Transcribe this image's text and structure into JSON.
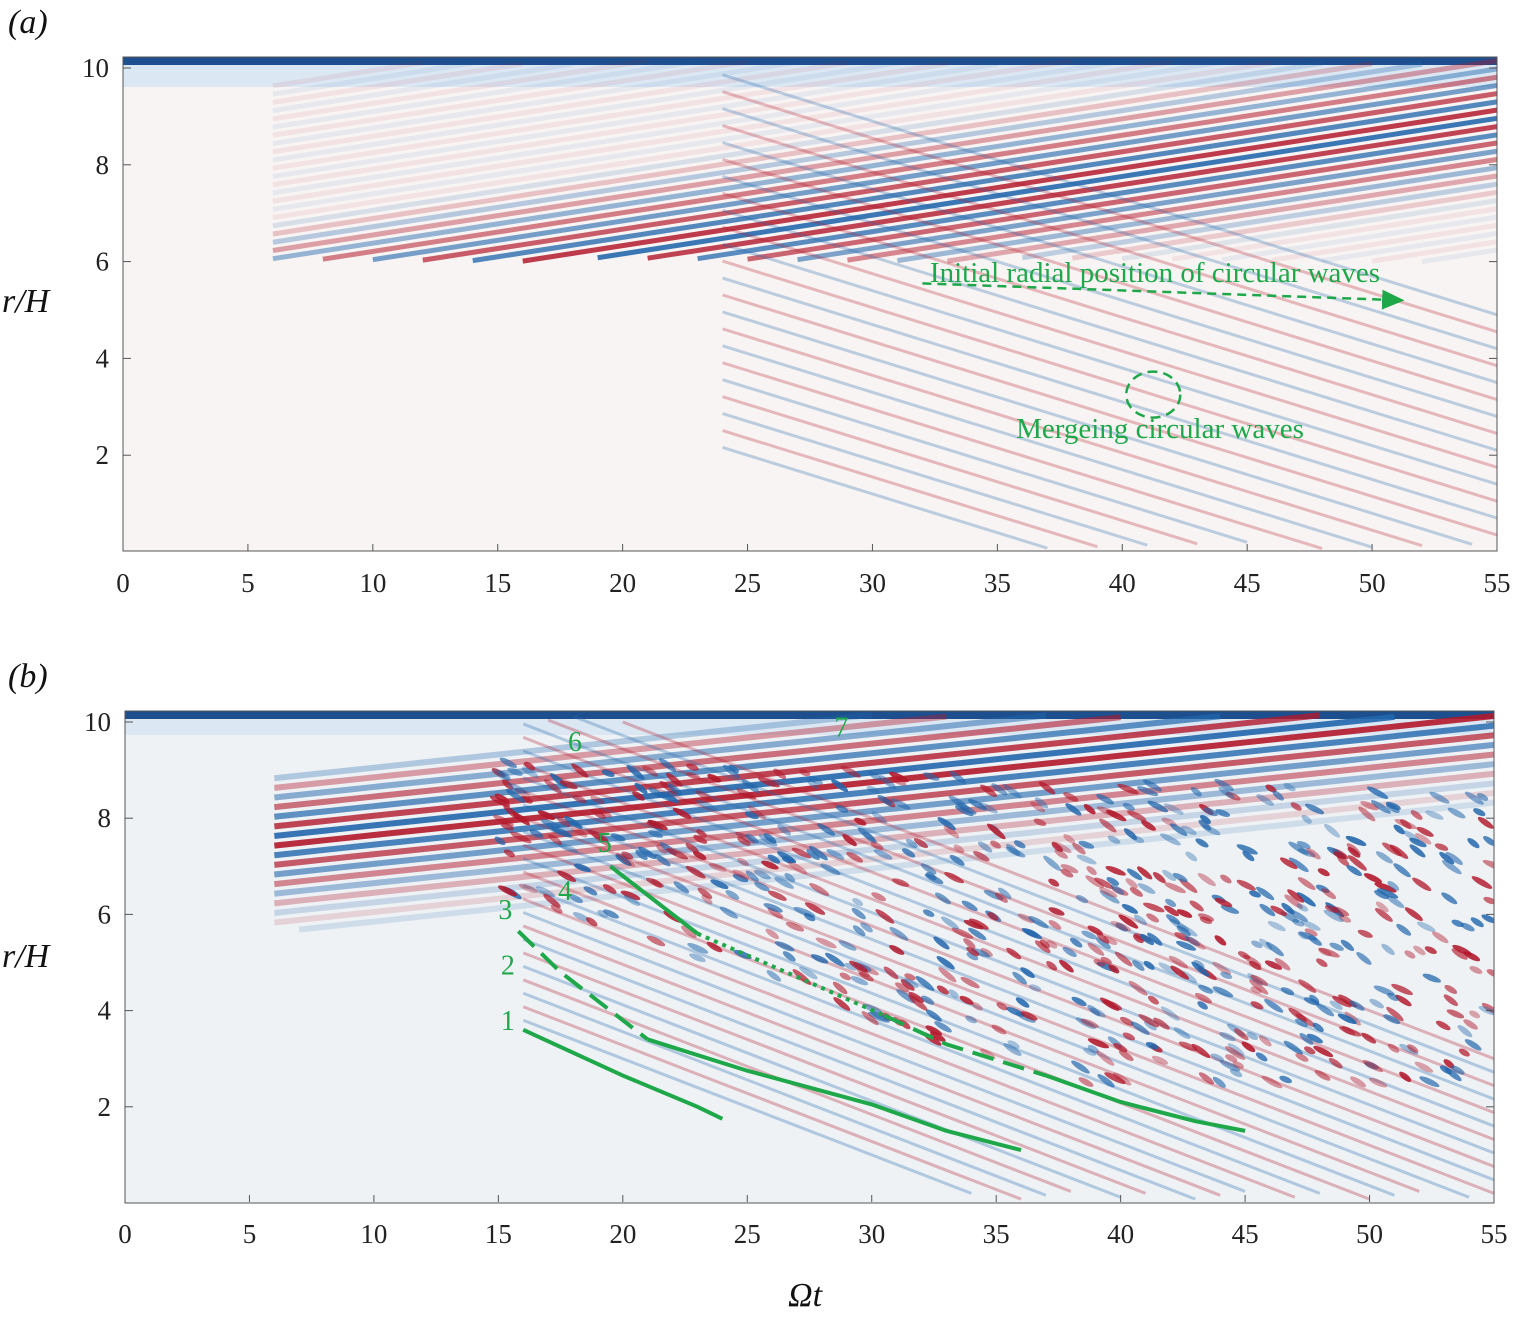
{
  "chart_data": [
    {
      "type": "heatmap",
      "panel_label": "(a)",
      "xlabel": "",
      "ylabel": "r/H",
      "xlim": [
        0,
        55
      ],
      "ylim": [
        0,
        10.2
      ],
      "xticks": [
        "0",
        "5",
        "10",
        "15",
        "20",
        "25",
        "30",
        "35",
        "40",
        "45",
        "50",
        "55"
      ],
      "yticks": [
        "2",
        "4",
        "6",
        "8",
        "10"
      ],
      "colormap": {
        "positive": "#b2182b",
        "negative": "#2166ac",
        "zero": "#f7f7f7"
      },
      "annotations": [
        {
          "text": "Initial radial position of circular waves",
          "type": "dashed-arrow",
          "from": [
            32,
            5.55
          ],
          "to": [
            51.2,
            5.2
          ],
          "color": "#1fa84a"
        },
        {
          "text": "Mergeing circular waves",
          "type": "dashed-circle",
          "center": [
            41,
            3.5
          ],
          "color": "#1fa84a"
        }
      ]
    },
    {
      "type": "heatmap",
      "panel_label": "(b)",
      "xlabel": "Ωt",
      "ylabel": "r/H",
      "xlim": [
        0,
        55
      ],
      "ylim": [
        0,
        10.2
      ],
      "xticks": [
        "0",
        "5",
        "10",
        "15",
        "20",
        "25",
        "30",
        "35",
        "40",
        "45",
        "50",
        "55"
      ],
      "yticks": [
        "2",
        "4",
        "6",
        "8",
        "10"
      ],
      "colormap": {
        "positive": "#b2182b",
        "negative": "#2166ac",
        "zero": "#f7f7f7"
      },
      "wave_labels": [
        {
          "text": "1",
          "at": [
            15.1,
            3.6
          ]
        },
        {
          "text": "2",
          "at": [
            15.1,
            4.75
          ]
        },
        {
          "text": "3",
          "at": [
            15.0,
            5.9
          ]
        },
        {
          "text": "4",
          "at": [
            17.4,
            6.3
          ]
        },
        {
          "text": "5",
          "at": [
            19.0,
            7.3
          ]
        },
        {
          "text": "6",
          "at": [
            17.8,
            9.4
          ]
        },
        {
          "text": "7",
          "at": [
            28.5,
            9.7
          ]
        }
      ],
      "curves": [
        {
          "style": "solid",
          "points": [
            [
              16,
              3.6
            ],
            [
              20,
              2.65
            ],
            [
              23,
              2.0
            ],
            [
              24,
              1.75
            ]
          ]
        },
        {
          "style": "dashed",
          "points": [
            [
              15.8,
              5.65
            ],
            [
              17.5,
              4.8
            ],
            [
              19.5,
              4.0
            ],
            [
              21,
              3.4
            ]
          ]
        },
        {
          "style": "solid",
          "points": [
            [
              21,
              3.4
            ],
            [
              25,
              2.75
            ],
            [
              30,
              2.05
            ],
            [
              33,
              1.5
            ],
            [
              36,
              1.1
            ]
          ]
        },
        {
          "style": "solid",
          "points": [
            [
              19.5,
              7.0
            ],
            [
              23,
              5.6
            ]
          ]
        },
        {
          "style": "dotted",
          "points": [
            [
              23,
              5.6
            ],
            [
              27,
              4.7
            ],
            [
              30.5,
              3.9
            ]
          ]
        },
        {
          "style": "dashed",
          "points": [
            [
              30.5,
              3.9
            ],
            [
              33,
              3.3
            ],
            [
              37,
              2.65
            ]
          ]
        },
        {
          "style": "solid",
          "points": [
            [
              37,
              2.65
            ],
            [
              40,
              2.1
            ],
            [
              43,
              1.7
            ],
            [
              45,
              1.5
            ]
          ]
        }
      ]
    }
  ]
}
